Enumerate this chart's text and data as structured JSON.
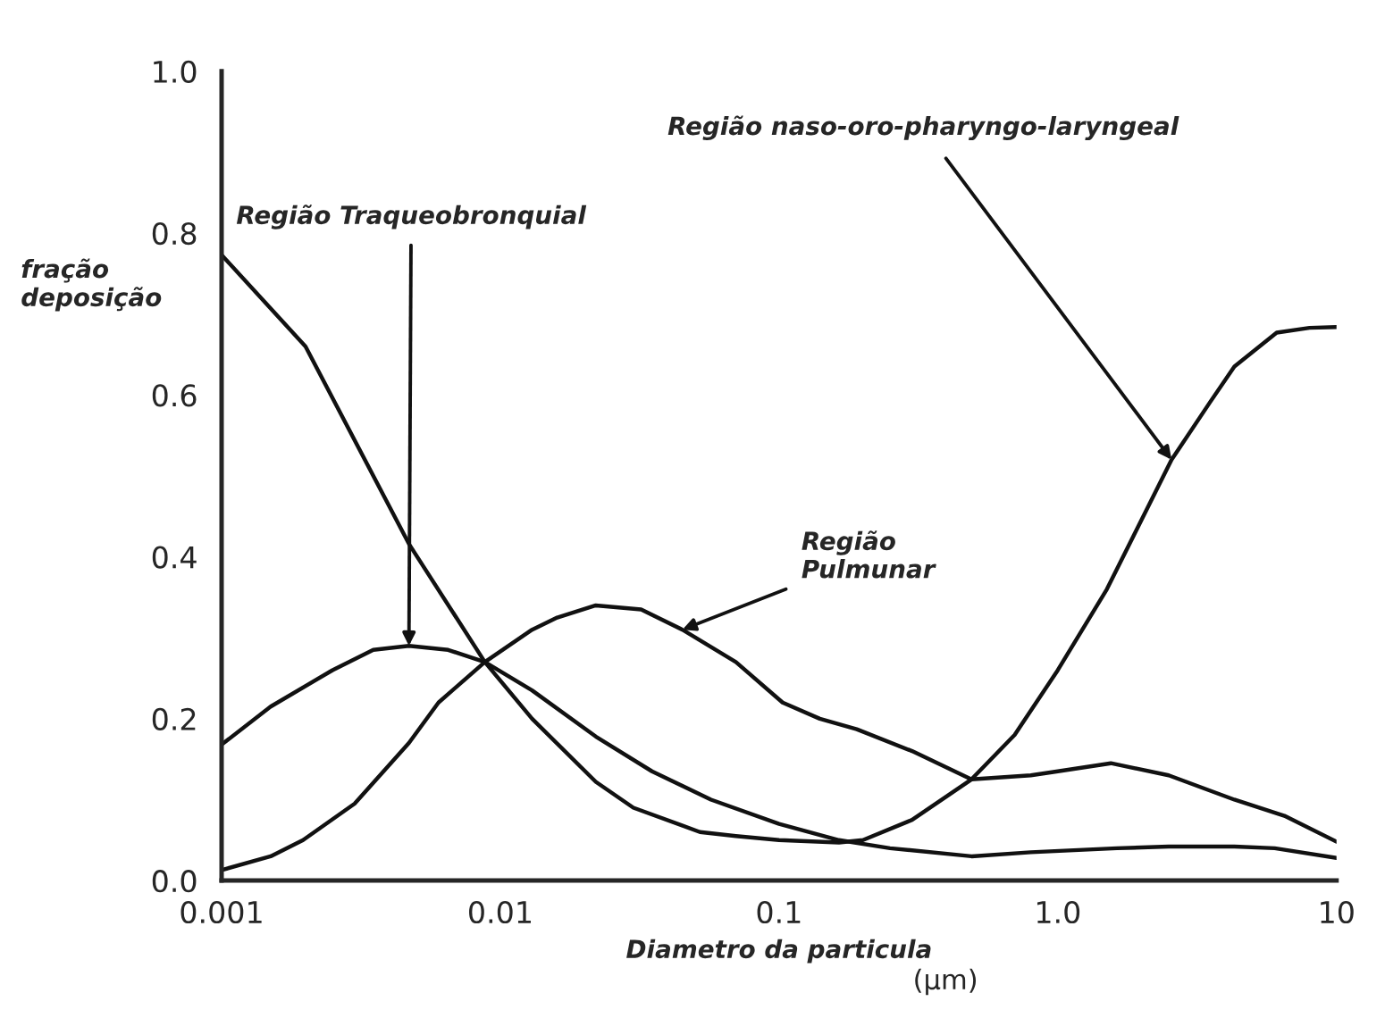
{
  "chart_data": {
    "type": "line",
    "xlabel": "Diametro da particula",
    "ylabel": "fração\ndeposição",
    "log": "x",
    "xlim": [
      0.001,
      10
    ],
    "ylim": [
      0,
      1
    ],
    "xticks": [
      0.001,
      0.01,
      0.1,
      {
        "value": 1,
        "label": "1.0"
      },
      10
    ],
    "yticks": [
      {
        "value": 0,
        "label": "0.0"
      },
      {
        "value": 0.2,
        "label": "0.2"
      },
      {
        "value": 0.4,
        "label": "0.4"
      },
      {
        "value": 0.6,
        "label": "0.6"
      },
      {
        "value": 0.8,
        "label": "0.8"
      },
      {
        "value": 1,
        "label": "1.0"
      }
    ],
    "grid": false,
    "legend": false,
    "marker": "none",
    "line_style": "solid",
    "series": [
      {
        "color": "#111111",
        "x": [
          0.001,
          0.002,
          0.0047,
          0.0088,
          0.013,
          0.022,
          0.03,
          0.052,
          0.07,
          0.1,
          0.164,
          0.2,
          0.3,
          0.49,
          0.7,
          1.0,
          1.5,
          2.56,
          3.5,
          4.3,
          6.1,
          8,
          10
        ],
        "values": [
          0.773,
          0.66,
          0.416,
          0.27,
          0.2,
          0.122,
          0.09,
          0.06,
          0.055,
          0.05,
          0.047,
          0.05,
          0.075,
          0.125,
          0.18,
          0.26,
          0.36,
          0.52,
          0.59,
          0.635,
          0.677,
          0.683,
          0.684
        ]
      },
      {
        "color": "#111111",
        "x": [
          0.001,
          0.0015,
          0.0025,
          0.0035,
          0.0047,
          0.0065,
          0.0088,
          0.013,
          0.022,
          0.035,
          0.057,
          0.1,
          0.164,
          0.25,
          0.49,
          0.8,
          1.63,
          2.5,
          4.3,
          6,
          10
        ],
        "values": [
          0.168,
          0.215,
          0.26,
          0.285,
          0.29,
          0.285,
          0.27,
          0.235,
          0.178,
          0.135,
          0.1,
          0.07,
          0.05,
          0.04,
          0.03,
          0.035,
          0.04,
          0.042,
          0.042,
          0.04,
          0.028
        ]
      },
      {
        "color": "#111111",
        "x": [
          0.001,
          0.0015,
          0.00196,
          0.003,
          0.0047,
          0.006,
          0.0088,
          0.013,
          0.016,
          0.022,
          0.032,
          0.045,
          0.07,
          0.103,
          0.14,
          0.19,
          0.3,
          0.49,
          0.8,
          1.0,
          1.55,
          2.5,
          4.3,
          6.5,
          10
        ],
        "values": [
          0.013,
          0.03,
          0.05,
          0.095,
          0.17,
          0.22,
          0.27,
          0.31,
          0.325,
          0.34,
          0.335,
          0.31,
          0.27,
          0.22,
          0.2,
          0.187,
          0.16,
          0.125,
          0.13,
          0.135,
          0.145,
          0.13,
          0.1,
          0.08,
          0.048
        ]
      }
    ],
    "annotations": [
      {
        "text": "Região naso-oro-pharyngo-laryngeal",
        "x": 2.56,
        "y": 0.52
      },
      {
        "text": "Região Traqueobronquial",
        "x": 0.0047,
        "y": 0.29
      },
      {
        "text": "Região\nPulmunar",
        "x": 0.045,
        "y": 0.31
      },
      "(µm)"
    ]
  }
}
